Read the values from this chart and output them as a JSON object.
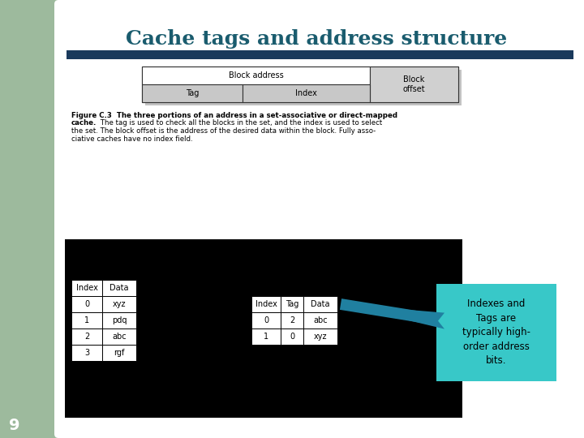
{
  "title": "Cache tags and address structure",
  "title_color": "#1a5c6e",
  "title_fontsize": 18,
  "bg_color": "#ffffff",
  "corner_rect_color": "#9dba9d",
  "header_bar_color": "#1a3a5c",
  "slide_number": "9",
  "addr_table": {
    "block_address_label": "Block address",
    "tag_label": "Tag",
    "index_label": "Index",
    "block_offset_label": "Block\noffset"
  },
  "main_mem_table": {
    "headers": [
      "Index",
      "Data"
    ],
    "rows": [
      [
        "0",
        "xyz"
      ],
      [
        "1",
        "pdq"
      ],
      [
        "2",
        "abc"
      ],
      [
        "3",
        "rgf"
      ]
    ]
  },
  "cache_table": {
    "headers": [
      "Index",
      "Tag",
      "Data"
    ],
    "rows": [
      [
        "0",
        "2",
        "abc"
      ],
      [
        "1",
        "0",
        "xyz"
      ]
    ]
  },
  "callout_text": "Indexes and\nTags are\ntypically high-\norder address\nbits.",
  "callout_bg": "#38c8c8",
  "arrow_color": "#2080a0",
  "black_box_color": "#000000"
}
